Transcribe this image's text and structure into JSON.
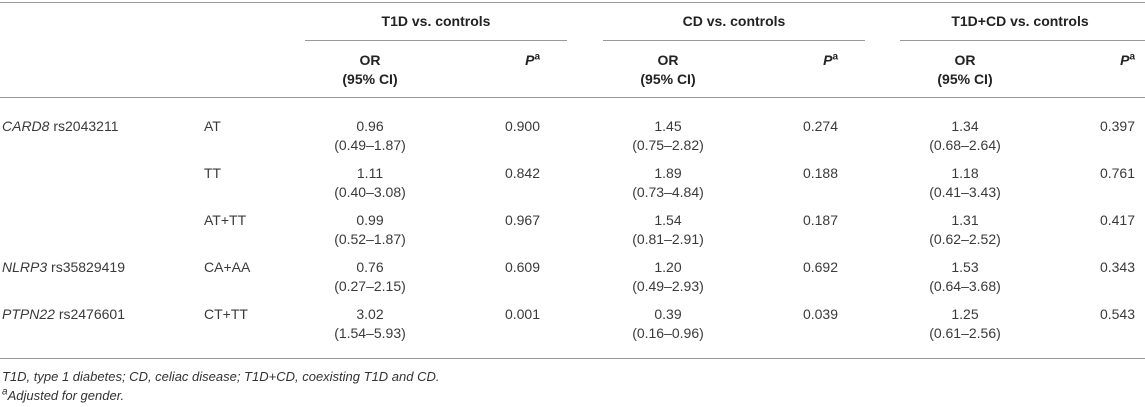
{
  "groups": [
    {
      "label": "T1D vs. controls"
    },
    {
      "label": "CD vs. controls"
    },
    {
      "label": "T1D+CD vs. controls"
    }
  ],
  "subheaders": {
    "or_line1": "OR",
    "or_line2": "(95% CI)",
    "p_label": "P",
    "p_sup": "a"
  },
  "rows": [
    {
      "gene": "CARD8",
      "snp": "rs2043211",
      "genotype": "AT",
      "t1d_or": "0.96",
      "t1d_ci": "(0.49–1.87)",
      "t1d_p": "0.900",
      "cd_or": "1.45",
      "cd_ci": "(0.75–2.82)",
      "cd_p": "0.274",
      "both_or": "1.34",
      "both_ci": "(0.68–2.64)",
      "both_p": "0.397"
    },
    {
      "gene": "",
      "snp": "",
      "genotype": "TT",
      "t1d_or": "1.11",
      "t1d_ci": "(0.40–3.08)",
      "t1d_p": "0.842",
      "cd_or": "1.89",
      "cd_ci": "(0.73–4.84)",
      "cd_p": "0.188",
      "both_or": "1.18",
      "both_ci": "(0.41–3.43)",
      "both_p": "0.761"
    },
    {
      "gene": "",
      "snp": "",
      "genotype": "AT+TT",
      "t1d_or": "0.99",
      "t1d_ci": "(0.52–1.87)",
      "t1d_p": "0.967",
      "cd_or": "1.54",
      "cd_ci": "(0.81–2.91)",
      "cd_p": "0.187",
      "both_or": "1.31",
      "both_ci": "(0.62–2.52)",
      "both_p": "0.417"
    },
    {
      "gene": "NLRP3",
      "snp": "rs35829419",
      "genotype": "CA+AA",
      "t1d_or": "0.76",
      "t1d_ci": "(0.27–2.15)",
      "t1d_p": "0.609",
      "cd_or": "1.20",
      "cd_ci": "(0.49–2.93)",
      "cd_p": "0.692",
      "both_or": "1.53",
      "both_ci": "(0.64–3.68)",
      "both_p": "0.343"
    },
    {
      "gene": "PTPN22",
      "snp": "rs2476601",
      "genotype": "CT+TT",
      "t1d_or": "3.02",
      "t1d_ci": "(1.54–5.93)",
      "t1d_p": "0.001",
      "cd_or": "0.39",
      "cd_ci": "(0.16–0.96)",
      "cd_p": "0.039",
      "both_or": "1.25",
      "both_ci": "(0.61–2.56)",
      "both_p": "0.543"
    }
  ],
  "footnotes": {
    "abbrev": "T1D, type 1 diabetes; CD, celiac disease; T1D+CD, coexisting T1D and CD.",
    "a_sup": "a",
    "a_text": "Adjusted for gender."
  }
}
